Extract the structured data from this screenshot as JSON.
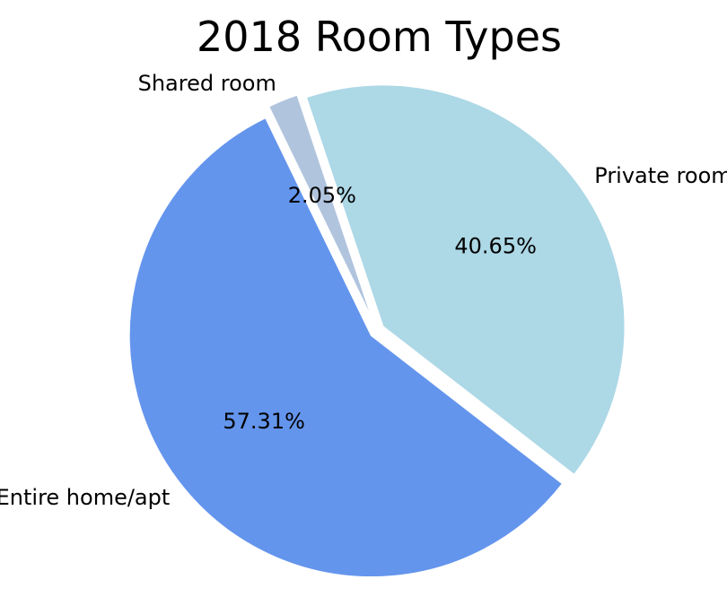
{
  "chart_data": {
    "type": "pie",
    "title": "2018 Room Types",
    "slices": [
      {
        "label": "Private room",
        "value": 40.65,
        "pct_label": "40.65%",
        "color": "#add8e6"
      },
      {
        "label": "Entire home/apt",
        "value": 57.31,
        "pct_label": "57.31%",
        "color": "#6495ed"
      },
      {
        "label": "Shared room",
        "value": 2.05,
        "pct_label": "2.05%",
        "color": "#b0c4de"
      }
    ],
    "start_angle_deg": 108.5,
    "direction": "clockwise",
    "explode": true
  }
}
